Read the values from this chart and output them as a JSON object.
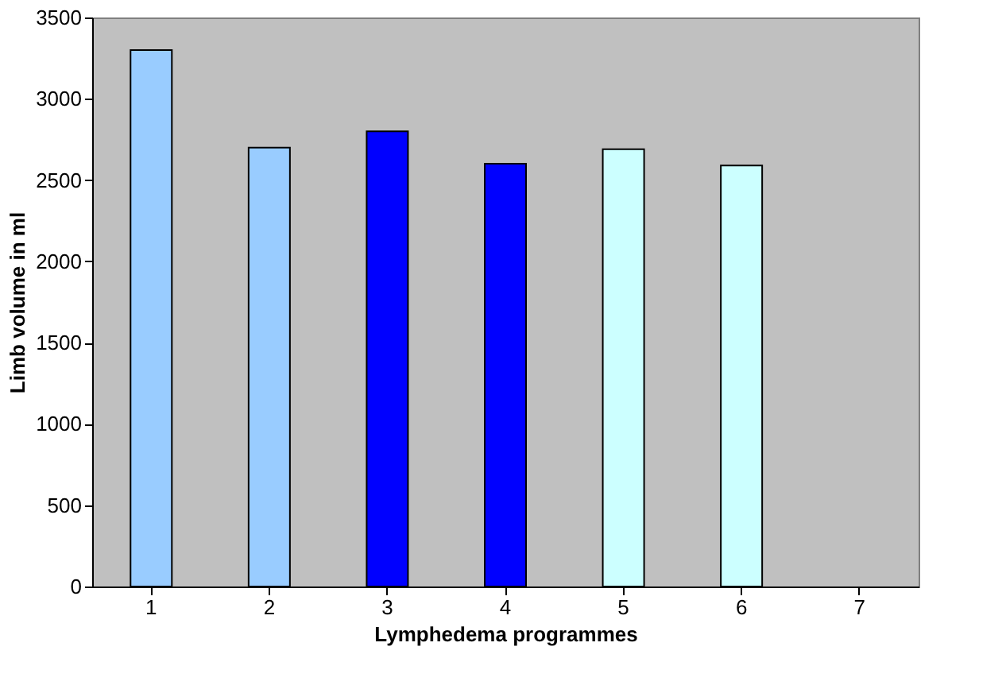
{
  "chart_data": {
    "type": "bar",
    "xlabel": "Lymphedema programmes",
    "ylabel": "Limb volume in ml",
    "categories": [
      "1",
      "2",
      "3",
      "4",
      "5",
      "6",
      "7"
    ],
    "values": [
      3300,
      2700,
      2800,
      2600,
      2690,
      2590,
      null
    ],
    "colors": [
      "#99ccff",
      "#99ccff",
      "#0000ff",
      "#0000ff",
      "#ccffff",
      "#ccffff",
      "#ccffff"
    ],
    "ylim": [
      0,
      3500
    ],
    "yticks": [
      0,
      500,
      1000,
      1500,
      2000,
      2500,
      3000,
      3500
    ],
    "grid": false
  }
}
